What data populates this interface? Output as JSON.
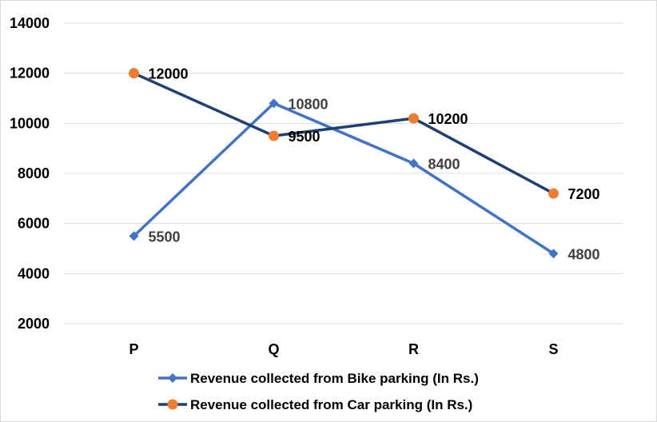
{
  "chart_data": {
    "type": "line",
    "title": "",
    "xlabel": "",
    "ylabel": "",
    "categories": [
      "P",
      "Q",
      "R",
      "S"
    ],
    "ylim": [
      2000,
      14000
    ],
    "yticks": [
      2000,
      4000,
      6000,
      8000,
      10000,
      12000,
      14000
    ],
    "grid": true,
    "legend_position": "bottom",
    "series": [
      {
        "name": "Revenue collected from Bike parking (In Rs.)",
        "values": [
          5500,
          10800,
          8400,
          4800
        ],
        "marker": "diamond",
        "line_color": "#4472C4",
        "marker_color": "#4472C4",
        "label_color": "#404040"
      },
      {
        "name": "Revenue collected from Car parking (In Rs.)",
        "values": [
          12000,
          9500,
          10200,
          7200
        ],
        "marker": "circle",
        "line_color": "#1F3F75",
        "marker_color": "#ED7D31",
        "label_color": "#000000"
      }
    ]
  }
}
